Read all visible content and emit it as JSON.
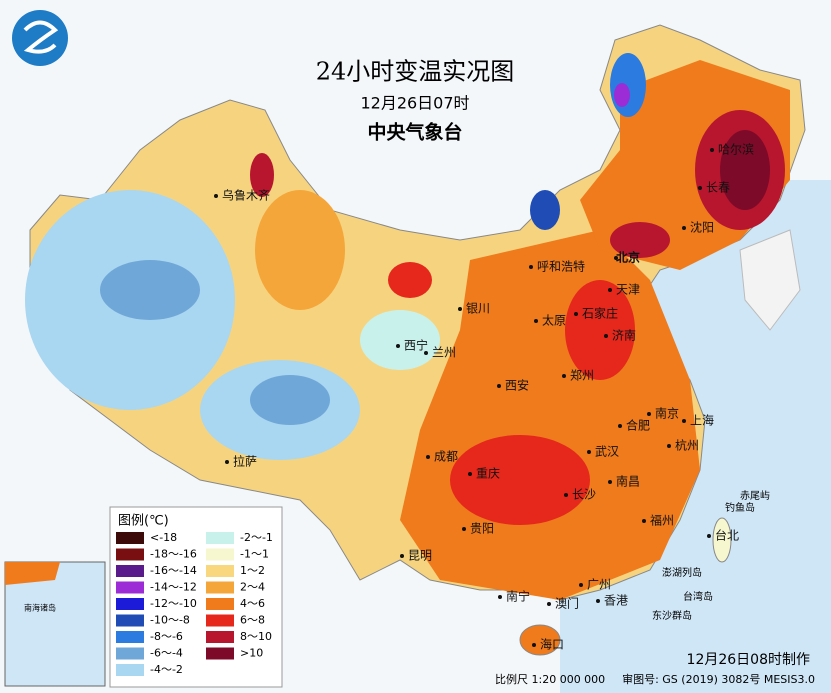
{
  "header": {
    "title": "24小时变温实况图",
    "subtitle": "12月26日07时",
    "organization": "中央气象台"
  },
  "legend": {
    "title": "图例(℃)",
    "items": [
      {
        "label": "<-18",
        "color": "#3d0a0a"
      },
      {
        "label": "-18～-16",
        "color": "#7a0f12"
      },
      {
        "label": "-16～-14",
        "color": "#5a1a8c"
      },
      {
        "label": "-14～-12",
        "color": "#9b2cd6"
      },
      {
        "label": "-12～-10",
        "color": "#1b1bd8"
      },
      {
        "label": "-10～-8",
        "color": "#1f4db5"
      },
      {
        "label": "-8～-6",
        "color": "#2c7be0"
      },
      {
        "label": "-6～-4",
        "color": "#6fa7d8"
      },
      {
        "label": "-4～-2",
        "color": "#a9d6f0"
      },
      {
        "label": "-2～-1",
        "color": "#c9f1ec"
      },
      {
        "label": "-1～1",
        "color": "#f6f6cf"
      },
      {
        "label": "1～2",
        "color": "#f8d77e"
      },
      {
        "label": "2～4",
        "color": "#f5a63a"
      },
      {
        "label": "4～6",
        "color": "#ef7b1d"
      },
      {
        "label": "6～8",
        "color": "#e5271c"
      },
      {
        "label": "8～10",
        "color": "#b8162e"
      },
      {
        "label": ">10",
        "color": "#7d0a28"
      }
    ]
  },
  "cities": [
    "乌鲁木齐",
    "哈尔滨",
    "长春",
    "沈阳",
    "北京",
    "天津",
    "呼和浩特",
    "石家庄",
    "太原",
    "济南",
    "银川",
    "西宁",
    "兰州",
    "西安",
    "郑州",
    "南京",
    "上海",
    "合肥",
    "武汉",
    "杭州",
    "成都",
    "重庆",
    "南昌",
    "长沙",
    "贵阳",
    "拉萨",
    "福州",
    "台北",
    "昆明",
    "南宁",
    "广州",
    "澳门",
    "香港",
    "海口"
  ],
  "islands": [
    "赤尾屿",
    "钓鱼岛",
    "澎湖列岛",
    "台湾岛",
    "东沙群岛"
  ],
  "inset": {
    "label": "南海诸岛"
  },
  "footer": {
    "made": "12月26日08时制作",
    "scale": "比例尺 1:20 000 000",
    "approval": "审图号: GS (2019) 3082号 MESIS3.0"
  }
}
